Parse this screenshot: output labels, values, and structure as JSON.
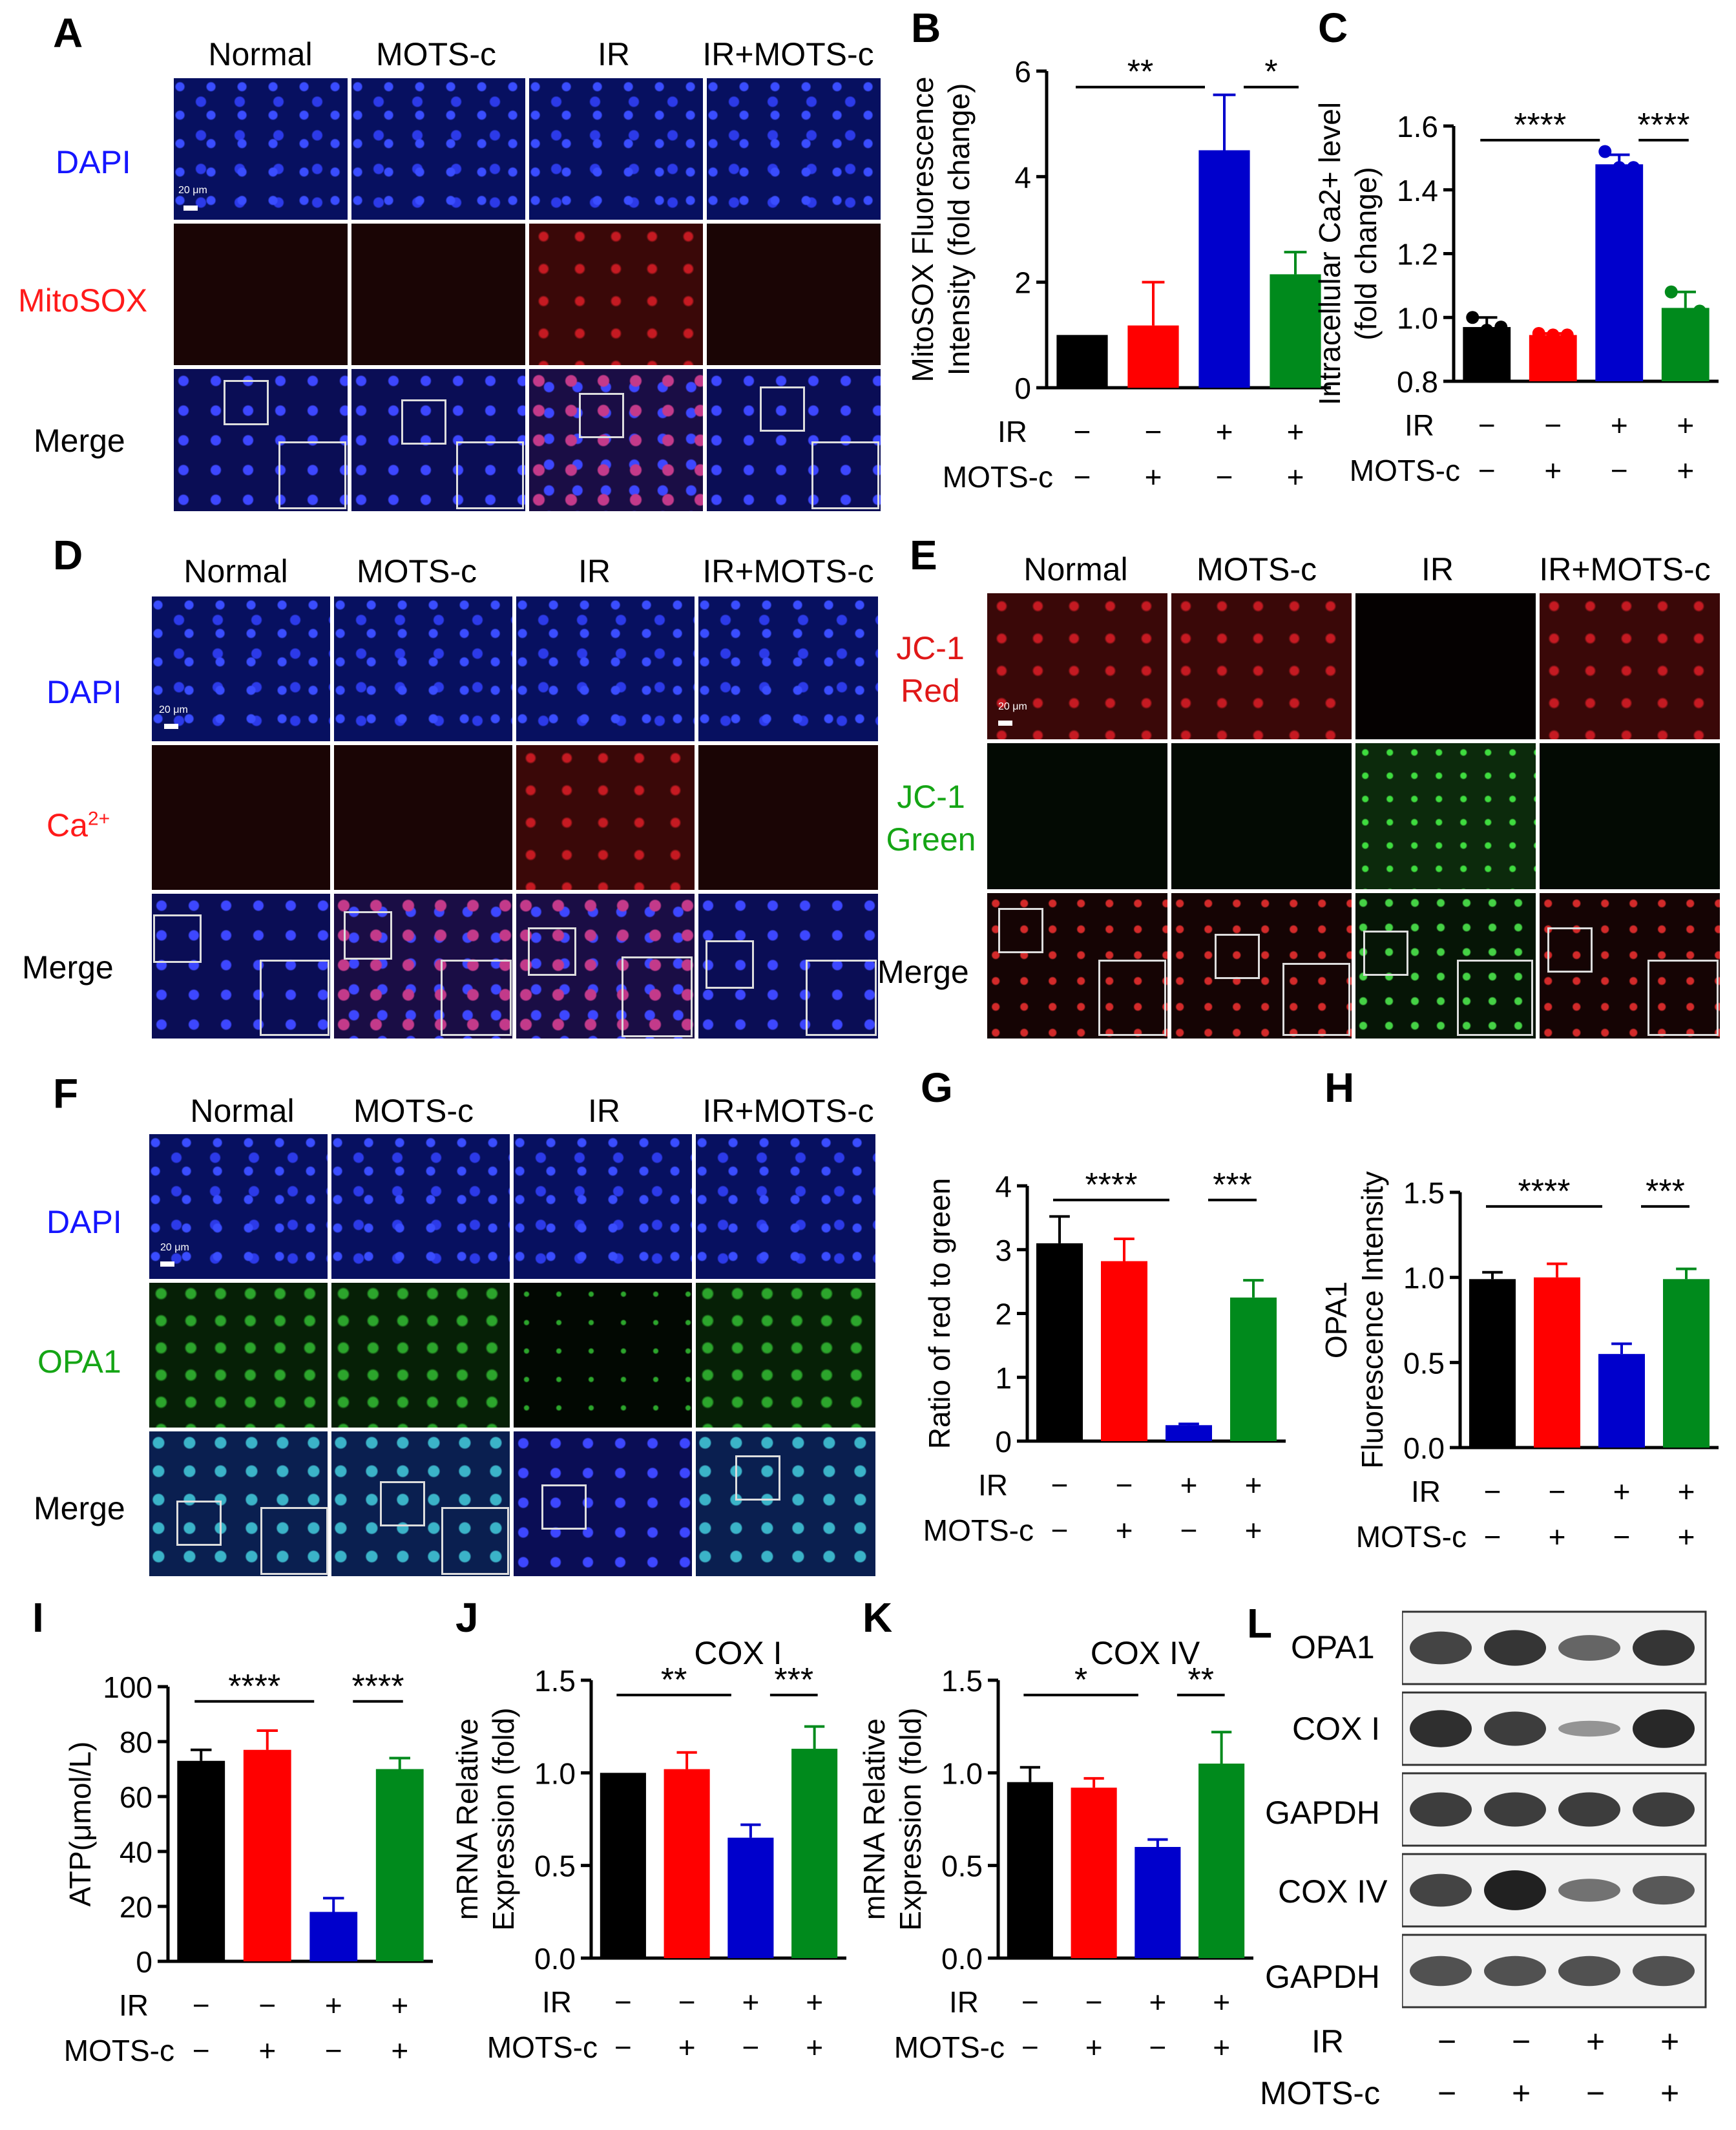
{
  "panels": {
    "A": {
      "letter": "A",
      "cols": [
        "Normal",
        "MOTS-c",
        "IR",
        "IR+MOTS-c"
      ],
      "rows": [
        "DAPI",
        "MitoSOX",
        "Merge"
      ],
      "scale": "20 μm"
    },
    "D": {
      "letter": "D",
      "cols": [
        "Normal",
        "MOTS-c",
        "IR",
        "IR+MOTS-c"
      ],
      "rows": [
        "DAPI",
        "Ca",
        "Merge"
      ],
      "ca_sup": "2+",
      "scale": "20 μm"
    },
    "E": {
      "letter": "E",
      "cols": [
        "Normal",
        "MOTS-c",
        "IR",
        "IR+MOTS-c"
      ],
      "rows": [
        "JC-1",
        "Red",
        "JC-1",
        "Green",
        "Merge"
      ],
      "scale": "20 μm"
    },
    "F": {
      "letter": "F",
      "cols": [
        "Normal",
        "MOTS-c",
        "IR",
        "IR+MOTS-c"
      ],
      "rows": [
        "DAPI",
        "OPA1",
        "Merge"
      ],
      "scale": "20 μm"
    },
    "L": {
      "letter": "L",
      "bands": [
        "OPA1",
        "COX I",
        "GAPDH",
        "COX IV",
        "GAPDH"
      ]
    }
  },
  "treatment": {
    "ir_label": "IR",
    "mots_label": "MOTS-c",
    "ir": [
      "−",
      "−",
      "+",
      "+"
    ],
    "mots": [
      "−",
      "+",
      "−",
      "+"
    ]
  },
  "colors": {
    "black": "#000000",
    "red": "#ff0000",
    "blue": "#0000cc",
    "green": "#008a1c"
  },
  "chart_data": [
    {
      "id": "B",
      "letter": "B",
      "type": "bar",
      "title": "",
      "ylabel": "MitoSOX Fluorescence\nIntensity (fold change)",
      "ylim": [
        0,
        6
      ],
      "yticks": [
        "0",
        "2",
        "4",
        "6"
      ],
      "ytick_vals": [
        0,
        2,
        4,
        6
      ],
      "values": [
        1.0,
        1.18,
        4.5,
        2.15
      ],
      "errors": [
        0,
        0.82,
        1.05,
        0.42
      ],
      "sig": [
        {
          "from": 0,
          "to": 2,
          "text": "**"
        },
        {
          "from": 2,
          "to": 3,
          "text": "*"
        }
      ]
    },
    {
      "id": "C",
      "letter": "C",
      "type": "bar",
      "title": "",
      "ylabel": "Intracellular Ca2+ level\n(fold change)",
      "ylim": [
        0.8,
        1.6
      ],
      "yticks": [
        "0.8",
        "1.0",
        "1.2",
        "1.4",
        "1.6"
      ],
      "ytick_vals": [
        0.8,
        1.0,
        1.2,
        1.4,
        1.6
      ],
      "values": [
        0.97,
        0.945,
        1.48,
        1.03
      ],
      "errors": [
        0.03,
        0.005,
        0.03,
        0.05
      ],
      "points": [
        [
          1.0,
          0.96,
          0.97
        ],
        [
          0.95,
          0.945,
          0.945
        ],
        [
          1.52,
          1.47,
          1.47
        ],
        [
          1.08,
          1.0,
          1.02
        ]
      ],
      "sig": [
        {
          "from": 0,
          "to": 2,
          "text": "****"
        },
        {
          "from": 2,
          "to": 3,
          "text": "****"
        }
      ]
    },
    {
      "id": "G",
      "letter": "G",
      "type": "bar",
      "title": "",
      "ylabel": "Ratio of red to green",
      "ylim": [
        0,
        4
      ],
      "yticks": [
        "0",
        "1",
        "2",
        "3",
        "4"
      ],
      "ytick_vals": [
        0,
        1,
        2,
        3,
        4
      ],
      "values": [
        3.1,
        2.82,
        0.25,
        2.25
      ],
      "errors": [
        0.42,
        0.35,
        0.02,
        0.27
      ],
      "sig": [
        {
          "from": 0,
          "to": 2,
          "text": "****"
        },
        {
          "from": 2,
          "to": 3,
          "text": "***"
        }
      ]
    },
    {
      "id": "H",
      "letter": "H",
      "type": "bar",
      "title": "",
      "ylabel": "OPA1\nFluorescence Intensity",
      "ylim": [
        0,
        1.5
      ],
      "yticks": [
        "0.0",
        "0.5",
        "1.0",
        "1.5"
      ],
      "ytick_vals": [
        0,
        0.5,
        1.0,
        1.5
      ],
      "values": [
        0.99,
        1.0,
        0.55,
        0.99
      ],
      "errors": [
        0.04,
        0.08,
        0.06,
        0.06
      ],
      "sig": [
        {
          "from": 0,
          "to": 2,
          "text": "****"
        },
        {
          "from": 2,
          "to": 3,
          "text": "***"
        }
      ]
    },
    {
      "id": "I",
      "letter": "I",
      "type": "bar",
      "title": "",
      "ylabel": "ATP(μmol/L)",
      "ylim": [
        0,
        100
      ],
      "yticks": [
        "0",
        "20",
        "40",
        "60",
        "80",
        "100"
      ],
      "ytick_vals": [
        0,
        20,
        40,
        60,
        80,
        100
      ],
      "values": [
        73,
        77,
        18,
        70
      ],
      "errors": [
        4,
        7,
        5,
        4
      ],
      "sig": [
        {
          "from": 0,
          "to": 2,
          "text": "****"
        },
        {
          "from": 2,
          "to": 3,
          "text": "****"
        }
      ]
    },
    {
      "id": "J",
      "letter": "J",
      "type": "bar",
      "title": "COX I",
      "ylabel": "mRNA Relative\nExpression (fold)",
      "ylim": [
        0,
        1.5
      ],
      "yticks": [
        "0.0",
        "0.5",
        "1.0",
        "1.5"
      ],
      "ytick_vals": [
        0,
        0.5,
        1.0,
        1.5
      ],
      "values": [
        1.0,
        1.02,
        0.65,
        1.13
      ],
      "errors": [
        0,
        0.09,
        0.07,
        0.12
      ],
      "sig": [
        {
          "from": 0,
          "to": 2,
          "text": "**"
        },
        {
          "from": 2,
          "to": 3,
          "text": "***"
        }
      ]
    },
    {
      "id": "K",
      "letter": "K",
      "type": "bar",
      "title": "COX IV",
      "ylabel": "mRNA Relative\nExpression (fold)",
      "ylim": [
        0,
        1.5
      ],
      "yticks": [
        "0.0",
        "0.5",
        "1.0",
        "1.5"
      ],
      "ytick_vals": [
        0,
        0.5,
        1.0,
        1.5
      ],
      "values": [
        0.95,
        0.92,
        0.6,
        1.05
      ],
      "errors": [
        0.08,
        0.05,
        0.04,
        0.17
      ],
      "sig": [
        {
          "from": 0,
          "to": 2,
          "text": "*"
        },
        {
          "from": 2,
          "to": 3,
          "text": "**"
        }
      ]
    }
  ]
}
